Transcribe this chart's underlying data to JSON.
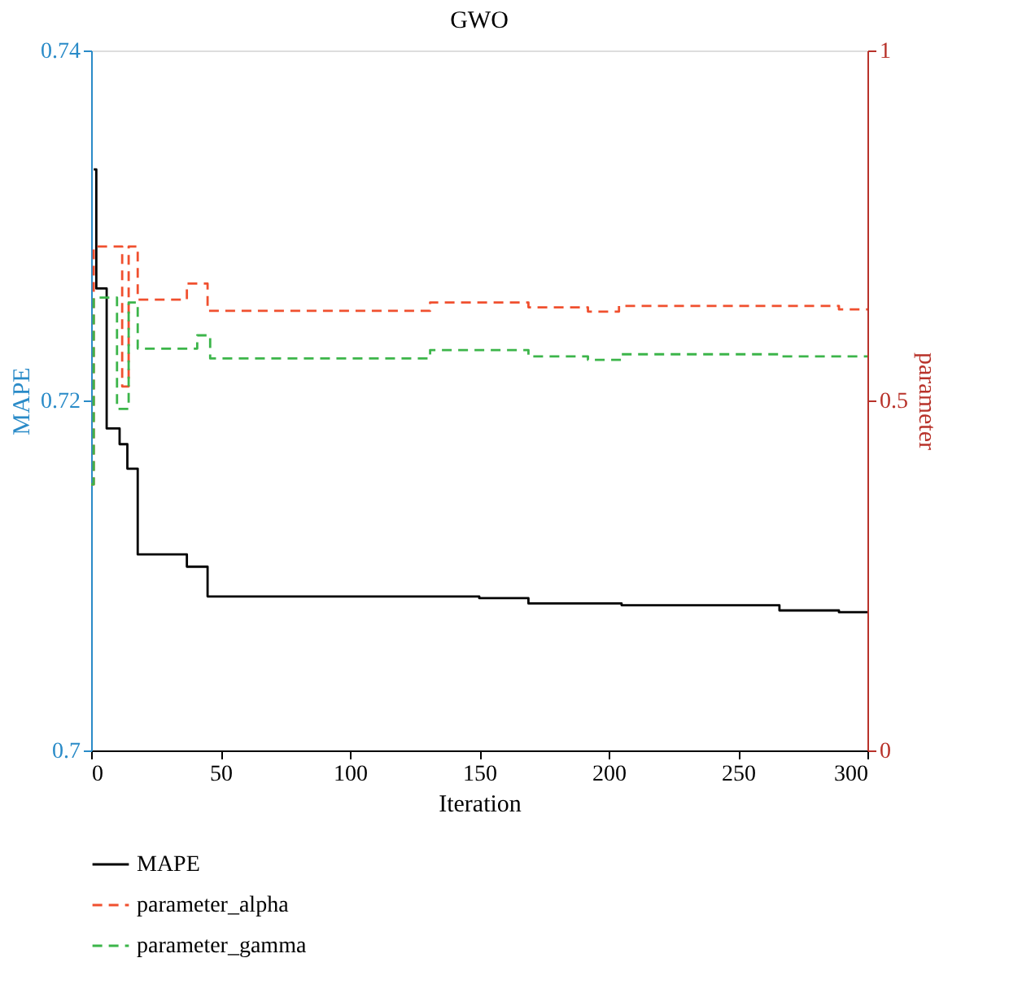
{
  "chart_data": {
    "type": "step",
    "title": "GWO",
    "xlabel": "Iteration",
    "ylabel": "MAPE",
    "y2label": "parameter",
    "xlim": [
      0,
      300
    ],
    "xticks": [
      0,
      50,
      100,
      150,
      200,
      250,
      300
    ],
    "ylim": [
      0.7,
      0.74
    ],
    "yticks": [
      0.7,
      0.72,
      0.74
    ],
    "y2lim": [
      0,
      1
    ],
    "y2ticks": [
      0,
      0.5,
      1
    ],
    "grid": false,
    "legend": "bottom",
    "marker": "none",
    "series": [
      {
        "name": "MAPE",
        "color": "#000000",
        "line_style": "solid",
        "x": [
          1,
          2,
          6,
          11,
          14,
          18,
          37,
          45,
          150,
          169,
          205,
          266,
          289,
          300
        ],
        "values": [
          0.7332,
          0.7264,
          0.7184,
          0.7175,
          0.7161,
          0.7112,
          0.7105,
          0.7088,
          0.7087,
          0.7084,
          0.7083,
          0.708,
          0.7079,
          0.7079
        ]
      },
      {
        "name": "parameter_alpha",
        "color": "#f0502f",
        "line_style": "dashed",
        "axis": "y2",
        "x": [
          0,
          1,
          12,
          14.5,
          18,
          37,
          45,
          131,
          169,
          192,
          204,
          289,
          300
        ],
        "values": [
          0.38,
          0.72,
          0.52,
          0.72,
          0.644,
          0.667,
          0.628,
          0.64,
          0.633,
          0.627,
          0.635,
          0.63,
          0.63
        ]
      },
      {
        "name": "parameter_gamma",
        "color": "#3cb54a",
        "line_style": "dashed",
        "axis": "y2",
        "x": [
          0,
          1,
          10,
          14.5,
          18,
          41,
          46,
          131,
          169,
          192,
          205,
          266,
          300
        ],
        "values": [
          0.38,
          0.647,
          0.488,
          0.64,
          0.574,
          0.593,
          0.56,
          0.572,
          0.563,
          0.558,
          0.566,
          0.563,
          0.563
        ]
      }
    ]
  }
}
